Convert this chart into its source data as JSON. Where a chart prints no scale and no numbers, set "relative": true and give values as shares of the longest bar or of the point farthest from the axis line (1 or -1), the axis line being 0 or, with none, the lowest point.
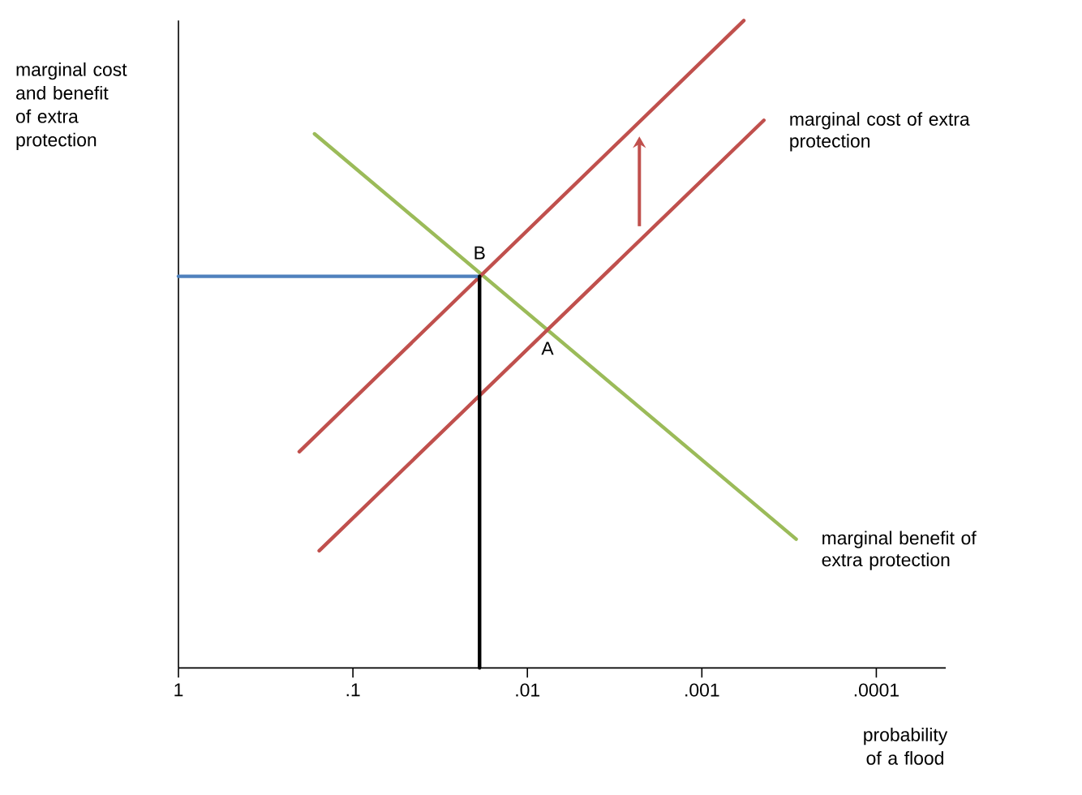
{
  "chart_data": {
    "type": "line",
    "relative": true,
    "ylabel": "marginal cost and benefit of extra protection",
    "xlabel": "probability of a flood",
    "log": "x",
    "xlim": [
      1,
      4e-05
    ],
    "xticks": [
      1,
      {
        "value": 0.1,
        "label": ".1"
      },
      {
        "value": 0.01,
        "label": ".01"
      },
      {
        "value": 0.001,
        "label": ".001"
      },
      {
        "value": 0.0001,
        "label": ".0001"
      }
    ],
    "annotations": [
      {
        "text": "A",
        "x": 0.00767,
        "y": 0.525
      },
      {
        "text": "B",
        "x": 0.0188,
        "y": 0.605
      }
    ],
    "grid": false,
    "marker": "none",
    "line_style": "solid",
    "series": [
      {
        "name": "marginal benefit of extra protection",
        "color": "#9bbb59",
        "x": [
          0.166,
          0.000288
        ],
        "values": [
          0.825,
          0.199
        ]
      },
      {
        "color": "#c0504d",
        "x": [
          0.203,
          0.000575
        ],
        "values": [
          0.334,
          1
        ]
      },
      {
        "name": "marginal cost of extra protection",
        "color": "#c0504d",
        "x": [
          0.156,
          0.000441
        ],
        "values": [
          0.181,
          0.846
        ]
      },
      {
        "color": "#4f81bd",
        "x": [
          1,
          0.0188
        ],
        "values": [
          0.605,
          0.605
        ]
      },
      {
        "color": "#000000",
        "x": [
          0.0188,
          0.0188
        ],
        "values": [
          0,
          0.605
        ]
      }
    ]
  }
}
